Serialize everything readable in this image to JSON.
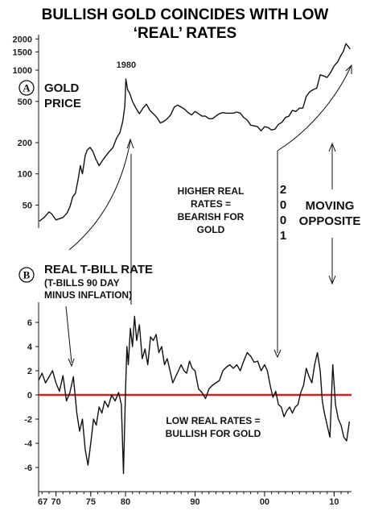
{
  "colors": {
    "line": "#111111",
    "zero_line": "#cc2222",
    "background": "#ffffff"
  },
  "chart_data": [
    {
      "panel": "A",
      "type": "line",
      "title_lines": [
        "BULLISH GOLD COINCIDES WITH LOW",
        "‘REAL’ RATES"
      ],
      "ylabel_lines": [
        "GOLD",
        "PRICE"
      ],
      "y_scale": "log",
      "ylim": [
        30,
        2200
      ],
      "xlim": [
        1967.5,
        2012.5
      ],
      "y_ticks": [
        {
          "value": 2000,
          "label": "2000"
        },
        {
          "value": 1500,
          "label": "1500"
        },
        {
          "value": 1000,
          "label": "1000"
        },
        {
          "value": 500,
          "label": "500"
        },
        {
          "value": 200,
          "label": "200"
        },
        {
          "value": 100,
          "label": "100"
        },
        {
          "value": 50,
          "label": "50"
        }
      ],
      "peak_label": {
        "x": 1980.1,
        "text": "1980"
      },
      "series": [
        {
          "x": [
            1967.6,
            1968.3,
            1969.0,
            1969.4,
            1970.0,
            1970.5,
            1971.0,
            1971.6,
            1972.0,
            1972.4,
            1972.8,
            1973.2,
            1973.5,
            1973.8,
            1974.2,
            1974.5,
            1974.9,
            1975.3,
            1975.7,
            1976.2,
            1976.7,
            1977.2,
            1977.7,
            1978.2,
            1978.7,
            1979.2,
            1979.6,
            1979.9,
            1980.05,
            1980.3,
            1980.6,
            1981.0,
            1981.5,
            1982.0,
            1982.5,
            1983.0,
            1983.5,
            1984.0,
            1984.5,
            1985.0,
            1985.5,
            1986.0,
            1986.5,
            1987.0,
            1987.5,
            1988.0,
            1988.5,
            1989.0,
            1989.5,
            1990.0,
            1990.5,
            1991.0,
            1991.5,
            1992.0,
            1992.5,
            1993.0,
            1993.5,
            1994.0,
            1994.5,
            1995.0,
            1995.5,
            1996.0,
            1996.5,
            1997.0,
            1997.5,
            1998.0,
            1998.5,
            1999.0,
            1999.5,
            2000.0,
            2000.5,
            2001.0,
            2001.5,
            2002.0,
            2002.5,
            2003.0,
            2003.5,
            2004.0,
            2004.5,
            2005.0,
            2005.5,
            2006.0,
            2006.5,
            2007.0,
            2007.5,
            2008.0,
            2008.5,
            2009.0,
            2009.5,
            2010.0,
            2010.5,
            2011.0,
            2011.3,
            2011.7,
            2012.0,
            2012.3
          ],
          "values": [
            35,
            38,
            43,
            41,
            36,
            37,
            38,
            42,
            48,
            60,
            65,
            90,
            120,
            100,
            150,
            170,
            180,
            165,
            140,
            120,
            135,
            150,
            165,
            180,
            220,
            250,
            320,
            450,
            820,
            650,
            600,
            500,
            430,
            380,
            430,
            470,
            410,
            380,
            350,
            310,
            320,
            340,
            370,
            440,
            460,
            440,
            420,
            390,
            370,
            400,
            380,
            360,
            360,
            340,
            340,
            360,
            380,
            390,
            385,
            385,
            385,
            395,
            385,
            350,
            330,
            295,
            290,
            285,
            260,
            285,
            280,
            265,
            270,
            300,
            315,
            350,
            360,
            410,
            400,
            430,
            430,
            560,
            620,
            650,
            670,
            900,
            880,
            850,
            950,
            1100,
            1200,
            1400,
            1500,
            1800,
            1700,
            1600
          ]
        }
      ]
    },
    {
      "panel": "B",
      "type": "line",
      "ylabel_lines": [
        "REAL T-BILL RATE",
        "(T-BILLS 90 DAY",
        "MINUS INFLATION)"
      ],
      "ylim": [
        -7,
        7
      ],
      "xlim": [
        1967.5,
        2012.5
      ],
      "y_ticks": [
        6,
        4,
        2,
        0,
        -2,
        -4,
        -6
      ],
      "x_ticks": [
        {
          "value": 1967,
          "label": "67"
        },
        {
          "value": 1970,
          "label": "70"
        },
        {
          "value": 1975,
          "label": "75"
        },
        {
          "value": 1980,
          "label": "80"
        },
        {
          "value": 1990,
          "label": "90"
        },
        {
          "value": 2000,
          "label": "00"
        },
        {
          "value": 2010,
          "label": "10"
        }
      ],
      "reference_line": {
        "y": 0
      },
      "series": [
        {
          "x": [
            1967.5,
            1968.0,
            1968.5,
            1969.0,
            1969.5,
            1970.0,
            1970.5,
            1971.0,
            1971.5,
            1972.0,
            1972.5,
            1973.0,
            1973.4,
            1973.8,
            1974.2,
            1974.6,
            1975.0,
            1975.4,
            1975.8,
            1976.2,
            1976.6,
            1977.0,
            1977.5,
            1978.0,
            1978.5,
            1979.0,
            1979.4,
            1979.7,
            1980.0,
            1980.2,
            1980.4,
            1980.7,
            1981.0,
            1981.3,
            1981.6,
            1982.0,
            1982.4,
            1982.8,
            1983.2,
            1983.6,
            1984.0,
            1984.4,
            1984.8,
            1985.2,
            1985.6,
            1986.0,
            1986.4,
            1986.8,
            1987.2,
            1987.6,
            1988.0,
            1988.4,
            1988.8,
            1989.2,
            1989.6,
            1990.0,
            1990.5,
            1991.0,
            1991.5,
            1992.0,
            1992.5,
            1993.0,
            1993.5,
            1994.0,
            1994.5,
            1995.0,
            1995.5,
            1996.0,
            1996.5,
            1997.0,
            1997.5,
            1998.0,
            1998.5,
            1999.0,
            1999.5,
            2000.0,
            2000.4,
            2000.8,
            2001.2,
            2001.6,
            2002.0,
            2002.4,
            2002.8,
            2003.2,
            2003.6,
            2004.0,
            2004.4,
            2004.8,
            2005.2,
            2005.6,
            2006.0,
            2006.4,
            2006.8,
            2007.2,
            2007.6,
            2008.0,
            2008.3,
            2008.6,
            2009.0,
            2009.4,
            2009.8,
            2010.2,
            2010.6,
            2011.0,
            2011.4,
            2011.8,
            2012.2
          ],
          "values": [
            1.2,
            1.8,
            1.0,
            1.5,
            2.0,
            1.0,
            0.3,
            1.6,
            -0.5,
            0.2,
            1.5,
            -1.5,
            -3.0,
            -2.0,
            -4.5,
            -5.8,
            -4.0,
            -2.0,
            -2.5,
            -1.0,
            -1.5,
            -0.5,
            -1.0,
            0.0,
            -0.5,
            0.2,
            -0.8,
            -6.5,
            0.5,
            4.0,
            2.5,
            5.5,
            4.0,
            6.5,
            4.5,
            5.8,
            3.0,
            3.8,
            2.5,
            4.8,
            4.5,
            5.0,
            3.5,
            4.0,
            2.5,
            3.0,
            2.0,
            1.0,
            1.5,
            2.0,
            2.5,
            2.0,
            1.8,
            2.8,
            2.2,
            2.0,
            0.5,
            0.2,
            -0.3,
            0.5,
            0.8,
            1.0,
            1.2,
            2.0,
            2.3,
            2.5,
            2.2,
            2.5,
            2.0,
            2.8,
            3.5,
            3.2,
            2.7,
            2.8,
            2.0,
            2.5,
            2.0,
            0.8,
            -0.2,
            0.3,
            -0.8,
            -1.0,
            -1.8,
            -1.3,
            -1.0,
            -1.5,
            -1.0,
            -0.8,
            0.2,
            0.8,
            2.2,
            1.5,
            1.0,
            2.5,
            3.5,
            2.0,
            -0.5,
            -1.5,
            -2.5,
            -3.5,
            2.5,
            -0.8,
            -2.0,
            -2.5,
            -3.5,
            -3.8,
            -2.2
          ]
        }
      ]
    }
  ],
  "annotations": {
    "higher_real_rates": [
      "HIGHER REAL",
      "RATES =",
      "BEARISH FOR",
      "GOLD"
    ],
    "low_real_rates": [
      "LOW REAL RATES =",
      "BULLISH FOR GOLD"
    ],
    "moving_opposite": [
      "MOVING",
      "OPPOSITE"
    ],
    "year_2001_digits": [
      "2",
      "0",
      "0",
      "1"
    ],
    "panel_a_letter": "A",
    "panel_b_letter": "B"
  }
}
